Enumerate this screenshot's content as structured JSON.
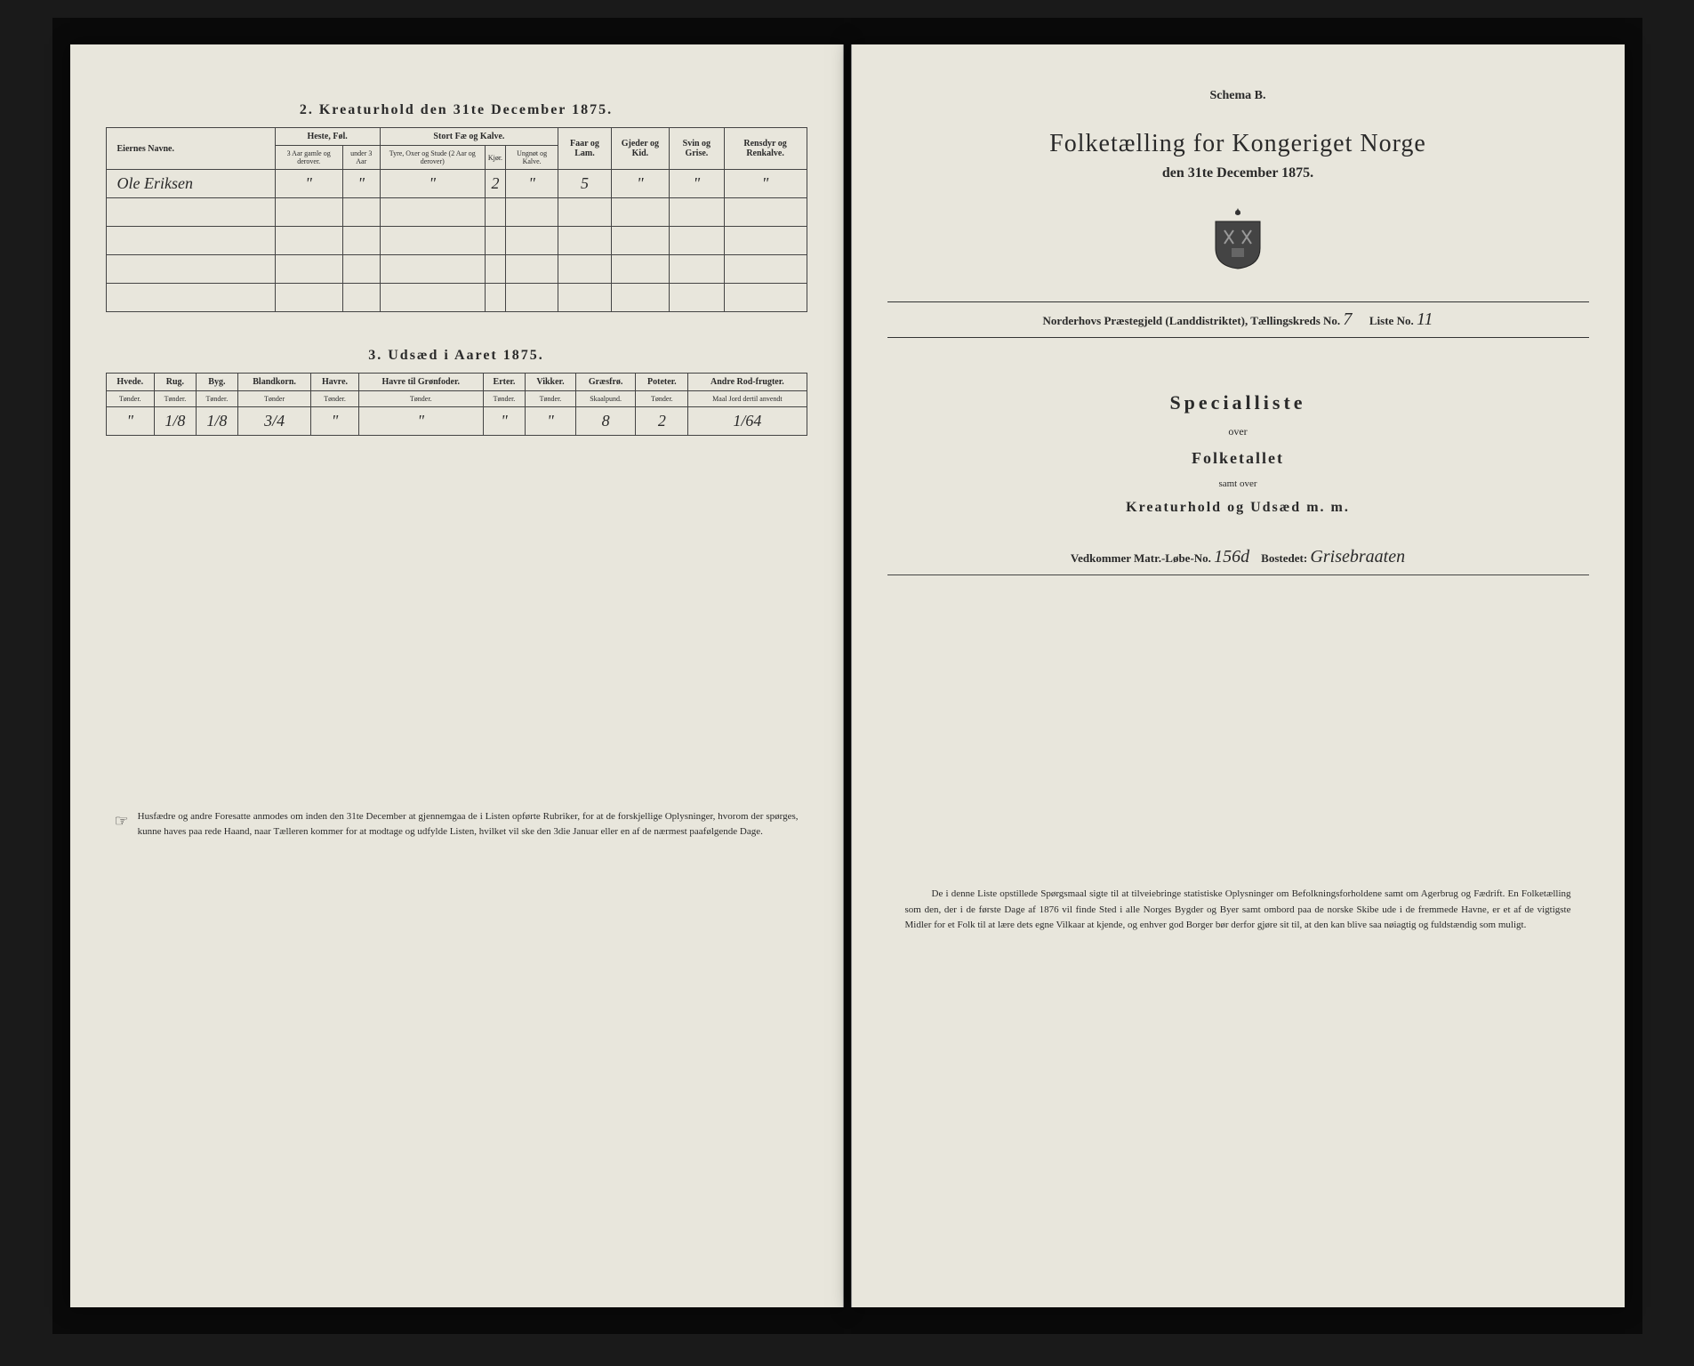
{
  "background_color": "#1a1a1a",
  "page_color": "#e8e6dc",
  "text_color": "#2a2a2a",
  "border_color": "#444444",
  "left_page": {
    "section2": {
      "title": "2.  Kreaturhold den 31te December 1875.",
      "headers": {
        "name": "Eiernes Navne.",
        "heste": "Heste, Føl.",
        "heste_sub1": "3 Aar gamle og derover.",
        "heste_sub2": "under 3 Aar",
        "stort": "Stort Fæ og Kalve.",
        "stort_sub1": "Tyre, Oxer og Stude (2 Aar og derover)",
        "stort_sub2": "Kjør.",
        "stort_sub3": "Ungnøt og Kalve.",
        "faar": "Faar og Lam.",
        "gjeder": "Gjeder og Kid.",
        "svin": "Svin og Grise.",
        "rensdyr": "Rensdyr og Renkalve."
      },
      "rows": [
        {
          "name": "Ole Eriksen",
          "h1": "\"",
          "h2": "\"",
          "s1": "\"",
          "s2": "2",
          "s3": "\"",
          "faar": "5",
          "gjeder": "\"",
          "svin": "\"",
          "rensdyr": "\""
        }
      ],
      "empty_rows": 4
    },
    "section3": {
      "title": "3.  Udsæd i Aaret 1875.",
      "headers": [
        "Hvede.",
        "Rug.",
        "Byg.",
        "Blandkorn.",
        "Havre.",
        "Havre til Grønfoder.",
        "Erter.",
        "Vikker.",
        "Græsfrø.",
        "Poteter.",
        "Andre Rod-frugter."
      ],
      "subheaders": [
        "Tønder.",
        "Tønder.",
        "Tønder.",
        "Tønder",
        "Tønder.",
        "Tønder.",
        "Tønder.",
        "Tønder.",
        "Skaalpund.",
        "Tønder.",
        "Maal Jord dertil anvendt"
      ],
      "row": [
        "\"",
        "1/8",
        "1/8",
        "3/4",
        "\"",
        "\"",
        "\"",
        "\"",
        "8",
        "2",
        "1/64"
      ]
    },
    "footnote": "Husfædre og andre Foresatte anmodes om inden den 31te December at gjennemgaa de i Listen opførte Rubriker, for at de forskjellige Oplysninger, hvorom der spørges, kunne haves paa rede Haand, naar Tælleren kommer for at modtage og udfylde Listen, hvilket vil ske den 3die Januar eller en af de nærmest paafølgende Dage."
  },
  "right_page": {
    "schema": "Schema B.",
    "main_title": "Folketælling for Kongeriget Norge",
    "subtitle": "den 31te December 1875.",
    "district_prefix": "Norderhovs Præstegjeld (Landdistriktet), Tællingskreds No.",
    "district_no": "7",
    "liste_label": "Liste No.",
    "liste_no": "11",
    "special": "Specialliste",
    "over": "over",
    "folketallet": "Folketallet",
    "samt": "samt over",
    "kreatur": "Kreaturhold og Udsæd m. m.",
    "vedkommer_label": "Vedkommer Matr.-Løbe-No.",
    "matr_no": "156d",
    "bostedet_label": "Bostedet:",
    "bostedet": "Grisebraaten",
    "footnote": "De i denne Liste opstillede Spørgsmaal sigte til at tilveiebringe statistiske Oplysninger om Befolkningsforholdene samt om Agerbrug og Fædrift. En Folketælling som den, der i de første Dage af 1876 vil finde Sted i alle Norges Bygder og Byer samt ombord paa de norske Skibe ude i de fremmede Havne, er et af de vigtigste Midler for et Folk til at lære dets egne Vilkaar at kjende, og enhver god Borger bør derfor gjøre sit til, at den kan blive saa nøiagtig og fuldstændig som muligt."
  }
}
